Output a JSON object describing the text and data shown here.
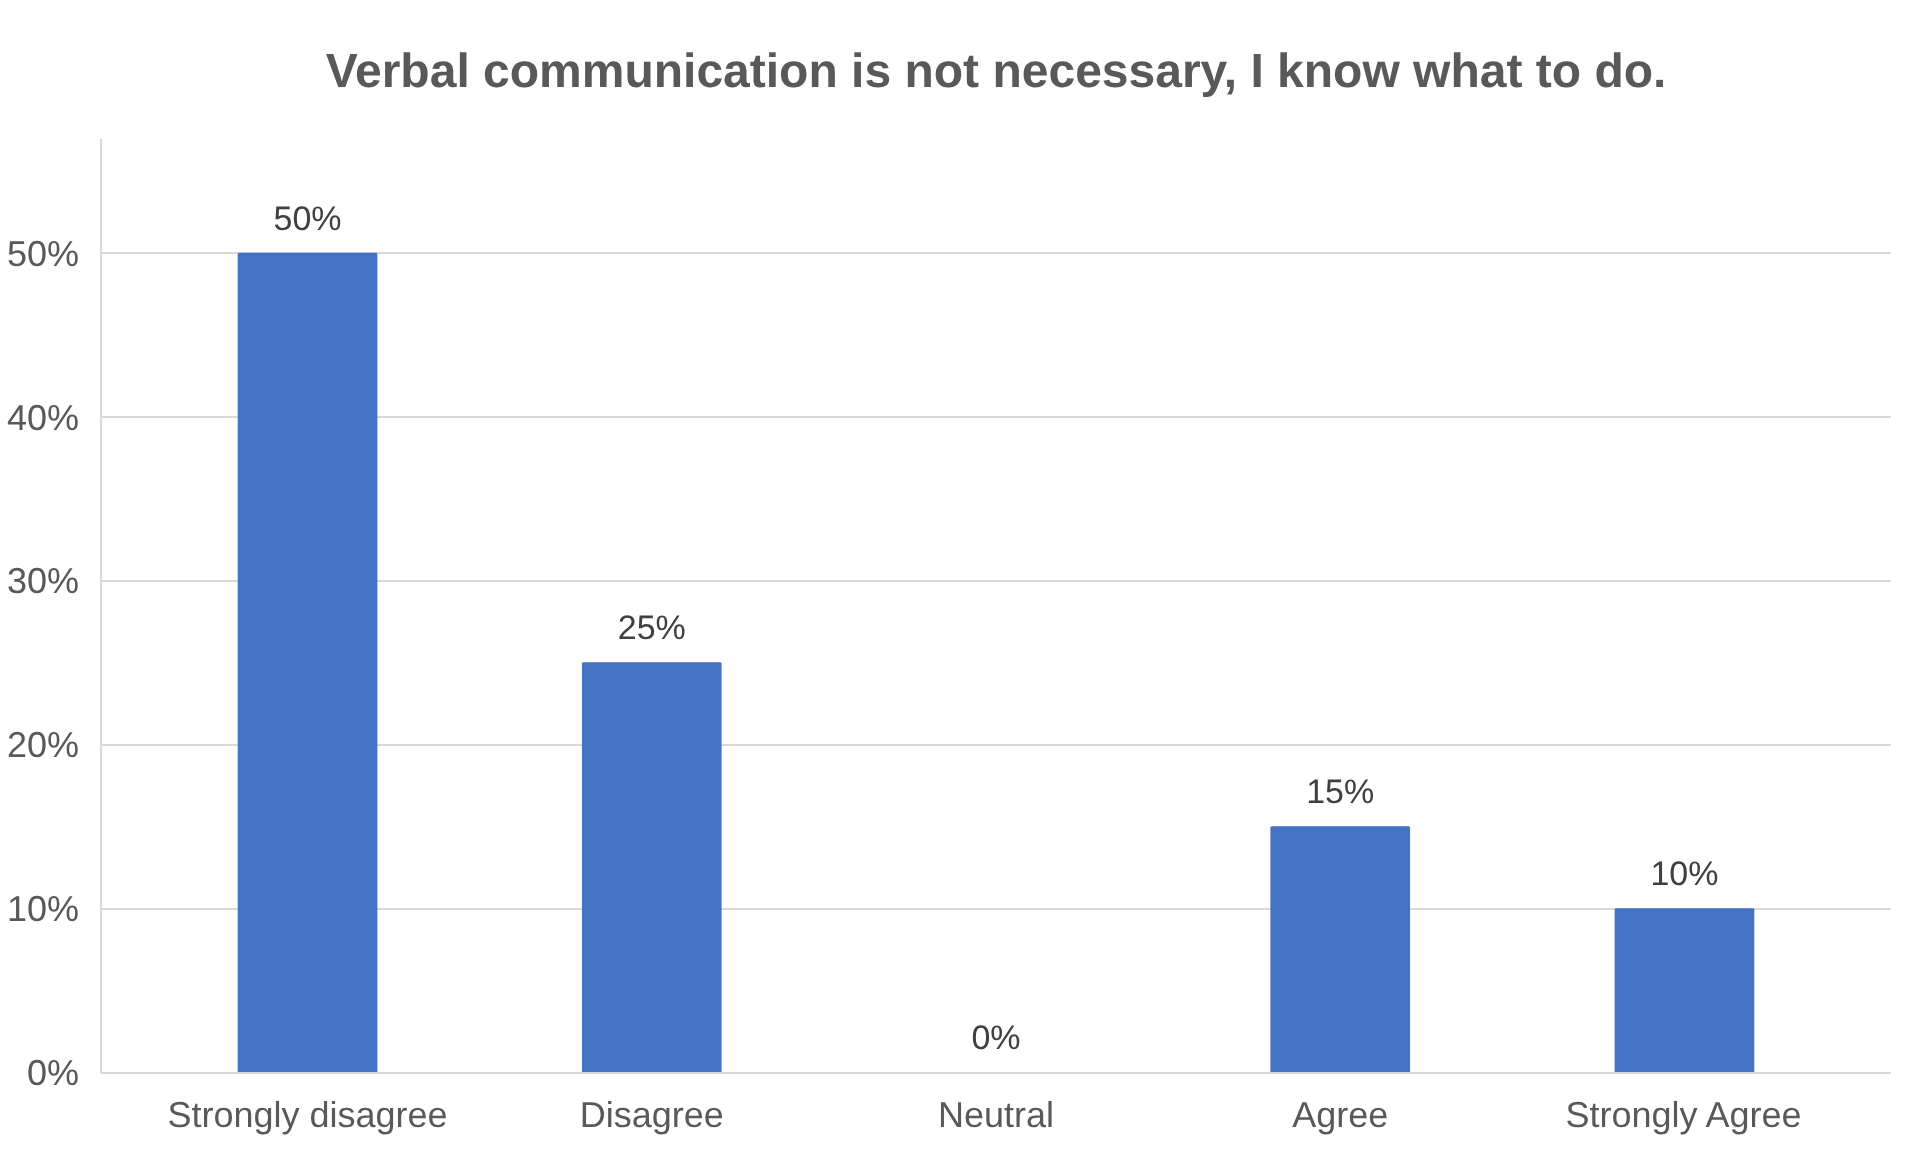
{
  "chart_data": {
    "type": "bar",
    "title": "Verbal communication is not necessary, I know what to do.",
    "categories": [
      "Strongly disagree",
      "Disagree",
      "Neutral",
      "Agree",
      "Strongly Agree"
    ],
    "values": [
      50,
      25,
      0,
      15,
      10
    ],
    "value_labels": [
      "50%",
      "25%",
      "0%",
      "15%",
      "10%"
    ],
    "color": "#4472c4",
    "ylim": [
      0,
      57
    ],
    "yticks": [
      {
        "value": 0,
        "label": "0%"
      },
      {
        "value": 10,
        "label": "10%"
      },
      {
        "value": 20,
        "label": "20%"
      },
      {
        "value": 30,
        "label": "30%"
      },
      {
        "value": 40,
        "label": "40%"
      },
      {
        "value": 50,
        "label": "50%"
      }
    ],
    "grid": "y"
  }
}
